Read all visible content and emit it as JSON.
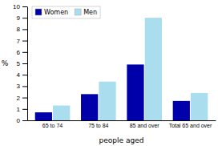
{
  "chart_data": {
    "type": "bar",
    "categories": [
      "65 to 74",
      "75 to 84",
      "85 and over",
      "Total 65 and over"
    ],
    "series": [
      {
        "name": "Women",
        "color": "#0000AA",
        "values": [
          0.7,
          2.3,
          4.9,
          1.7
        ]
      },
      {
        "name": "Men",
        "color": "#AADDEE",
        "values": [
          1.3,
          3.4,
          9.0,
          2.4
        ]
      }
    ],
    "xlabel": "people aged",
    "ylabel": "%",
    "ylim": [
      0,
      10
    ],
    "yticks": [
      0,
      1,
      2,
      3,
      4,
      5,
      6,
      7,
      8,
      9,
      10
    ],
    "grid": false,
    "legend": "upper left"
  }
}
